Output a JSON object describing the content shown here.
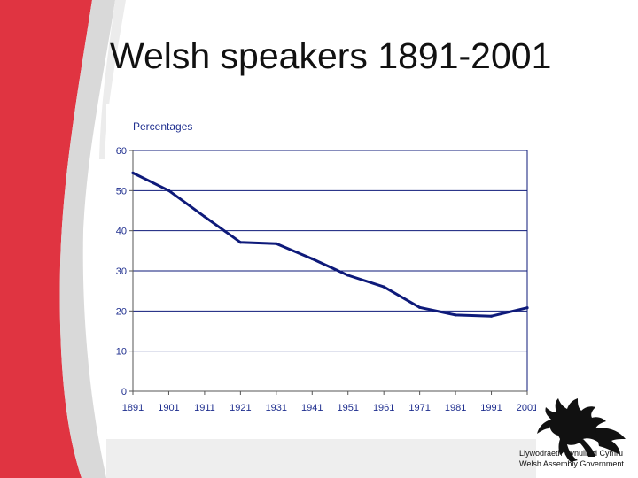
{
  "slide": {
    "title": "Welsh speakers 1891-2001",
    "accent_color": "#e03441",
    "logo": {
      "icon": "welsh-dragon-icon",
      "line1": "Llywodraeth Cynulliad Cymru",
      "line2": "Welsh Assembly Government"
    }
  },
  "chart_data": {
    "type": "line",
    "title": "",
    "ylabel": "Percentages",
    "xlabel": "",
    "x": [
      1891,
      1901,
      1911,
      1921,
      1931,
      1941,
      1951,
      1961,
      1971,
      1981,
      1991,
      2001
    ],
    "xticks": [
      "1891",
      "1901",
      "1911",
      "1921",
      "1931",
      "1941",
      "1951",
      "1961",
      "1971",
      "1981",
      "1991",
      "2001"
    ],
    "yticks": [
      "0",
      "10",
      "20",
      "30",
      "40",
      "50",
      "60"
    ],
    "series": [
      {
        "values": [
          54.4,
          50.0,
          43.5,
          37.1,
          36.8,
          33.0,
          28.9,
          26.0,
          20.9,
          19.0,
          18.7,
          20.8
        ]
      }
    ],
    "xlim": [
      1891,
      2001
    ],
    "ylim": [
      0,
      60
    ],
    "grid": "horizontal",
    "line_color": "#0e1a7a",
    "grid_color": "#0e1a7a"
  }
}
